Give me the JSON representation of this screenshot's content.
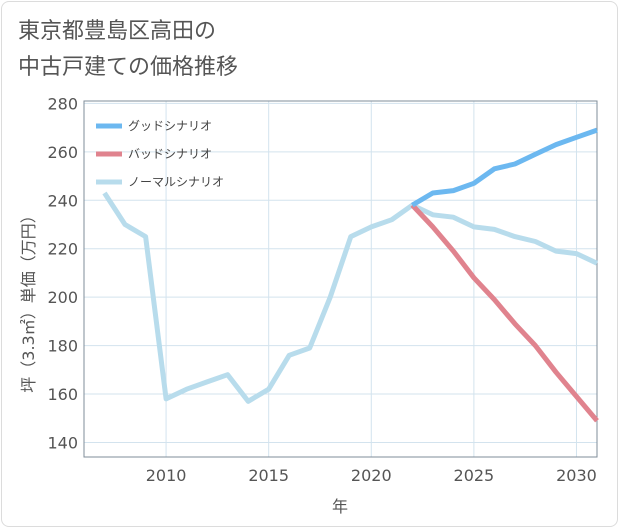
{
  "title": "東京都豊島区高田の\n中古戸建ての価格推移",
  "chart_data": {
    "type": "line",
    "title": "東京都豊島区高田の中古戸建ての価格推移",
    "xlabel": "年",
    "ylabel": "坪（3.3㎡）単価（万円）",
    "xlim": [
      2006,
      2031
    ],
    "ylim": [
      134,
      281
    ],
    "xticks": [
      2010,
      2015,
      2020,
      2025,
      2030
    ],
    "yticks": [
      140,
      160,
      180,
      200,
      220,
      240,
      260,
      280
    ],
    "legend_position": "top-left",
    "series": [
      {
        "name": "グッドシナリオ",
        "color": "#6cb8f0",
        "x": [
          2022,
          2023,
          2024,
          2025,
          2026,
          2027,
          2028,
          2029,
          2030,
          2031
        ],
        "y": [
          238,
          243,
          244,
          247,
          253,
          255,
          259,
          263,
          266,
          269
        ]
      },
      {
        "name": "バッドシナリオ",
        "color": "#e0838e",
        "x": [
          2022,
          2023,
          2024,
          2025,
          2026,
          2027,
          2028,
          2029,
          2030,
          2031
        ],
        "y": [
          238,
          229,
          219,
          208,
          199,
          189,
          180,
          169,
          159,
          149
        ]
      },
      {
        "name": "ノーマルシナリオ",
        "color": "#b8dcec",
        "x": [
          2007,
          2008,
          2009,
          2010,
          2011,
          2012,
          2013,
          2014,
          2015,
          2016,
          2017,
          2018,
          2019,
          2020,
          2021,
          2022,
          2023,
          2024,
          2025,
          2026,
          2027,
          2028,
          2029,
          2030,
          2031
        ],
        "y": [
          243,
          230,
          225,
          158,
          162,
          165,
          168,
          157,
          162,
          176,
          179,
          200,
          225,
          229,
          232,
          238,
          234,
          233,
          229,
          228,
          225,
          223,
          219,
          218,
          214
        ]
      }
    ]
  }
}
